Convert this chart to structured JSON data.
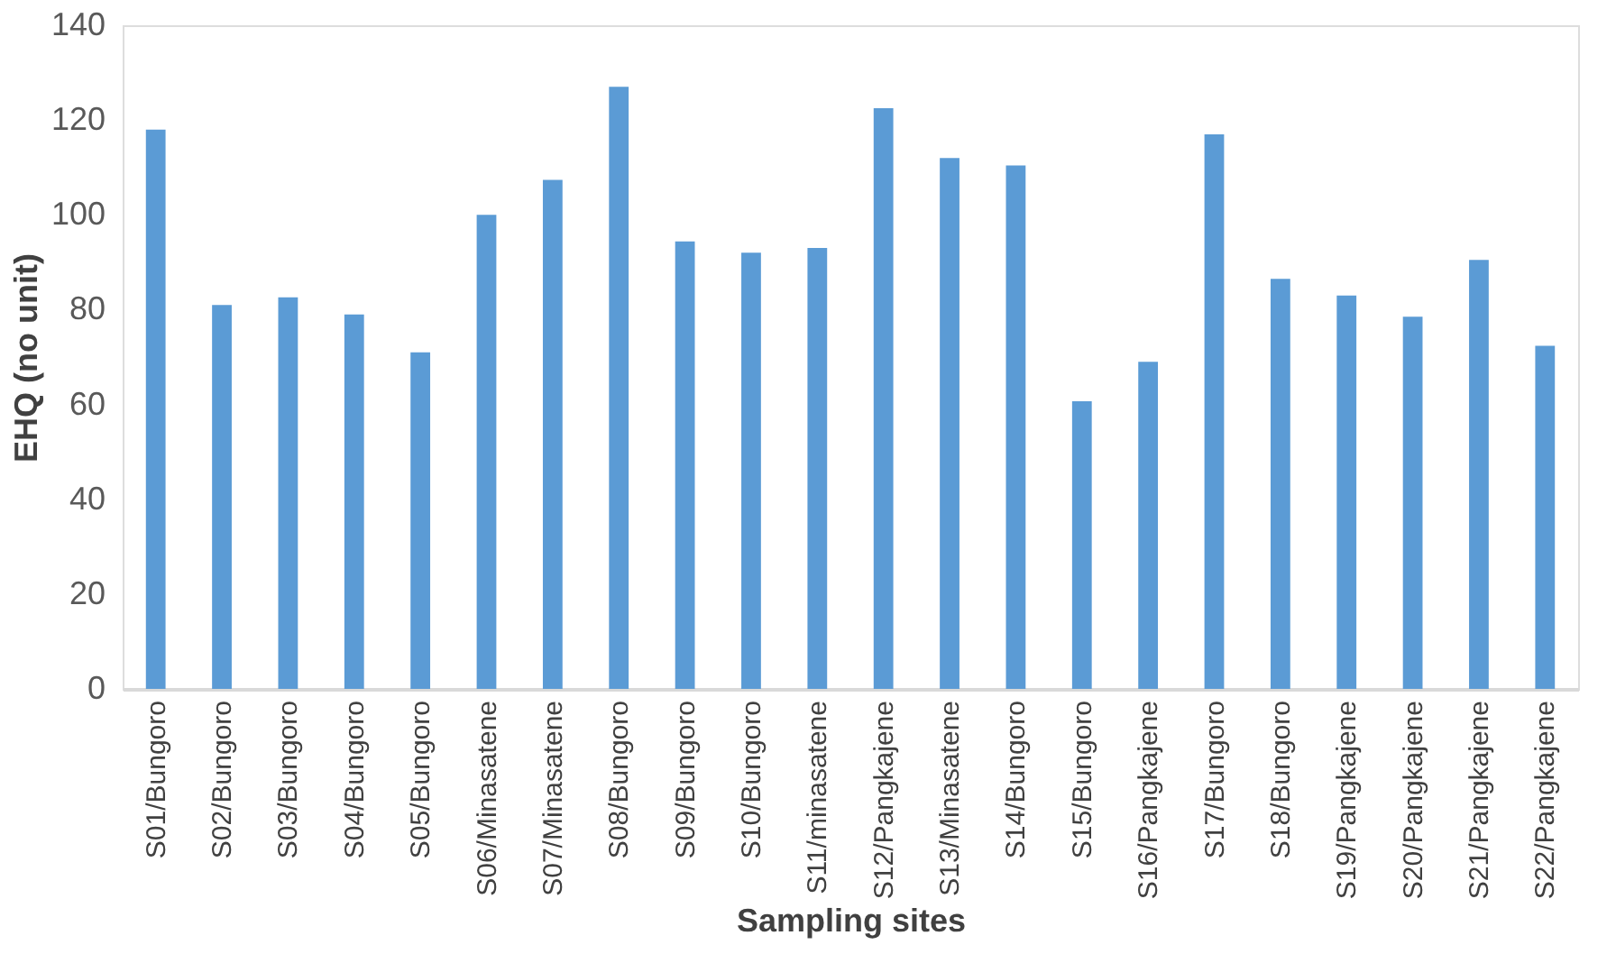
{
  "chart_data": {
    "type": "bar",
    "xlabel": "Sampling sites",
    "ylabel": "EHQ (no unit)",
    "categories": [
      "S01/Bungoro",
      "S02/Bungoro",
      "S03/Bungoro",
      "S04/Bungoro",
      "S05/Bungoro",
      "S06/Minasatene",
      "S07/Minasatene",
      "S08/Bungoro",
      "S09/Bungoro",
      "S10/Bungoro",
      "S11/minasatene",
      "S12/Pangkajene",
      "S13/Minasatene",
      "S14/Bungoro",
      "S15/Bungoro",
      "S16/Pangkajene",
      "S17/Bungoro",
      "S18/Bungoro",
      "S19/Pangkajene",
      "S20/Pangkajene",
      "S21/Pangkajene",
      "S22/Pangkajene"
    ],
    "values": [
      118,
      81,
      82.6,
      79,
      71,
      100,
      107.4,
      127,
      94.4,
      92,
      93,
      122.5,
      112,
      110.4,
      60.7,
      69,
      117,
      86.5,
      83,
      78.5,
      90.5,
      72.4
    ],
    "color": "#5b9bd5",
    "ylim": [
      0,
      140
    ],
    "yticks": [
      0,
      20,
      40,
      60,
      80,
      100,
      120,
      140
    ],
    "grid": false
  }
}
